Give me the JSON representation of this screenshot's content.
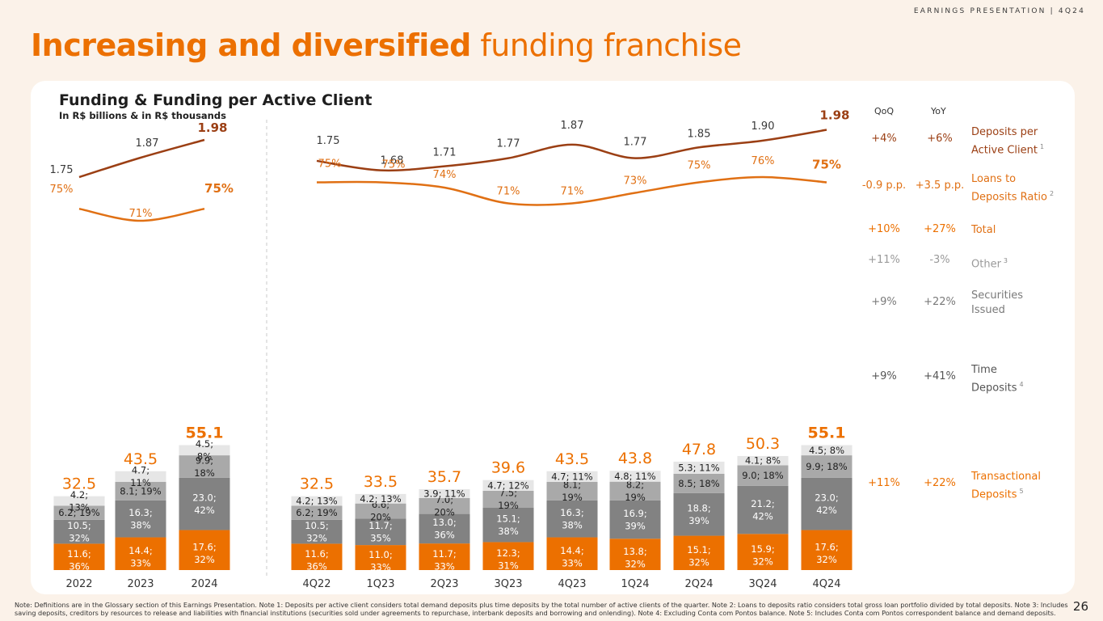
{
  "header": {
    "tag": "EARNINGS PRESENTATION | 4Q24"
  },
  "title": {
    "bold": "Increasing and diversified",
    "light": "funding franchise"
  },
  "chart_header": {
    "title": "Funding & Funding per Active Client",
    "subtitle": "In R$ billions & in R$ thousands"
  },
  "colors": {
    "orange": "#ec7000",
    "dark_gray": "#828282",
    "mid_gray": "#a9a9a9",
    "light_gray": "#e6e6e6",
    "brown": "#9b3f14",
    "line_orange": "#e07014",
    "green": "#2e9e4f"
  },
  "chart_data": [
    {
      "type": "bar",
      "stacked": true,
      "categories": [
        "2022",
        "2023",
        "2024"
      ],
      "series": [
        {
          "name": "Transactional Deposits",
          "values": [
            11.6,
            14.4,
            17.6
          ],
          "labels": [
            "11.6;|36%",
            "14.4;|33%",
            "17.6;|32%"
          ]
        },
        {
          "name": "Time Deposits",
          "values": [
            10.5,
            16.3,
            23.0
          ],
          "labels": [
            "10.5;|32%",
            "16.3;|38%",
            "23.0;|42%"
          ]
        },
        {
          "name": "Securities Issued",
          "values": [
            6.2,
            8.1,
            9.9
          ],
          "labels": [
            "6.2; 19%",
            "8.1; 19%",
            "9.9;|18%"
          ]
        },
        {
          "name": "Other",
          "values": [
            4.2,
            4.7,
            4.5
          ],
          "labels": [
            "4.2;|13%",
            "4.7;|11%",
            "4.5;|8%"
          ]
        }
      ],
      "totals": [
        "32.5",
        "43.5",
        "55.1"
      ],
      "deposits_per_client": {
        "values": [
          1.75,
          1.87,
          1.98
        ],
        "labels": [
          "1.75",
          "1.87",
          "1.98"
        ]
      },
      "loans_to_deposits": {
        "values": [
          75,
          71,
          75
        ],
        "labels": [
          "75%",
          "71%",
          "75%"
        ]
      }
    },
    {
      "type": "bar",
      "stacked": true,
      "categories": [
        "4Q22",
        "1Q23",
        "2Q23",
        "3Q23",
        "4Q23",
        "1Q24",
        "2Q24",
        "3Q24",
        "4Q24"
      ],
      "series": [
        {
          "name": "Transactional Deposits",
          "values": [
            11.6,
            11.0,
            11.7,
            12.3,
            14.4,
            13.8,
            15.1,
            15.9,
            17.6
          ],
          "labels": [
            "11.6;|36%",
            "11.0;|33%",
            "11.7;|33%",
            "12.3;|31%",
            "14.4;|33%",
            "13.8;|32%",
            "15.1;|32%",
            "15.9;|32%",
            "17.6;|32%"
          ]
        },
        {
          "name": "Time Deposits",
          "values": [
            10.5,
            11.7,
            13.0,
            15.1,
            16.3,
            16.9,
            18.8,
            21.2,
            23.0
          ],
          "labels": [
            "10.5;|32%",
            "11.7;|35%",
            "13.0;|36%",
            "15.1;|38%",
            "16.3;|38%",
            "16.9;|39%",
            "18.8;|39%",
            "21.2;|42%",
            "23.0;|42%"
          ]
        },
        {
          "name": "Securities Issued",
          "values": [
            6.2,
            6.6,
            7.0,
            7.5,
            8.1,
            8.2,
            8.5,
            9.0,
            9.9
          ],
          "labels": [
            "6.2; 19%",
            "6.6;|20%",
            "7.0;|20%",
            "7.5;|19%",
            "8.1;|19%",
            "8.2;|19%",
            "8.5; 18%",
            "9.0; 18%",
            "9.9; 18%"
          ]
        },
        {
          "name": "Other",
          "values": [
            4.2,
            4.2,
            3.9,
            4.7,
            4.7,
            4.8,
            5.3,
            4.1,
            4.5
          ],
          "labels": [
            "4.2; 13%",
            "4.2; 13%",
            "3.9; 11%",
            "4.7; 12%",
            "4.7; 11%",
            "4.8; 11%",
            "5.3; 11%",
            "4.1; 8%",
            "4.5; 8%"
          ]
        }
      ],
      "totals": [
        "32.5",
        "33.5",
        "35.7",
        "39.6",
        "43.5",
        "43.8",
        "47.8",
        "50.3",
        "55.1"
      ],
      "deposits_per_client": {
        "values": [
          1.75,
          1.68,
          1.71,
          1.77,
          1.87,
          1.77,
          1.85,
          1.9,
          1.98
        ],
        "labels": [
          "1.75",
          "1.68",
          "1.71",
          "1.77",
          "1.87",
          "1.77",
          "1.85",
          "1.90",
          "1.98"
        ]
      },
      "loans_to_deposits": {
        "values": [
          75,
          75,
          74,
          71,
          71,
          73,
          75,
          76,
          75
        ],
        "labels": [
          "75%",
          "75%",
          "74%",
          "71%",
          "71%",
          "73%",
          "75%",
          "76%",
          "75%"
        ]
      }
    }
  ],
  "side_table": {
    "qoq_label": "QoQ",
    "yoy_label": "YoY",
    "rows": [
      {
        "qoq": "+4%",
        "yoy": "+6%",
        "label": "Deposits per|Active Client",
        "note": "1"
      },
      {
        "qoq": "-0.9 p.p.",
        "yoy": "+3.5 p.p.",
        "label": "Loans to|Deposits Ratio",
        "note": "2"
      },
      {
        "qoq": "+10%",
        "yoy": "+27%",
        "label": "Total",
        "note": ""
      },
      {
        "qoq": "+11%",
        "yoy": "-3%",
        "label": "Other",
        "note": "3"
      },
      {
        "qoq": "+9%",
        "yoy": "+22%",
        "label": "Securities|Issued",
        "note": ""
      },
      {
        "qoq": "+9%",
        "yoy": "+41%",
        "label": "Time|Deposits",
        "note": "4"
      },
      {
        "qoq": "+11%",
        "yoy": "+22%",
        "label": "Transactional|Deposits",
        "note": "5"
      }
    ]
  },
  "footnote": "Note: Definitions are in the Glossary section of this Earnings Presentation. Note 1: Deposits per active client considers total demand deposits plus time deposits by the total number of active clients of the quarter. Note 2: Loans to deposits ratio considers total gross loan portfolio divided by total deposits. Note 3: Includes saving deposits, creditors by resources to release and liabilities with financial institutions (securities sold under agreements to repurchase, interbank deposits and borrowing and onlending). Note 4: Excluding Conta com Pontos balance. Note 5: Includes Conta com Pontos correspondent balance and demand deposits.",
  "page_number": "26"
}
